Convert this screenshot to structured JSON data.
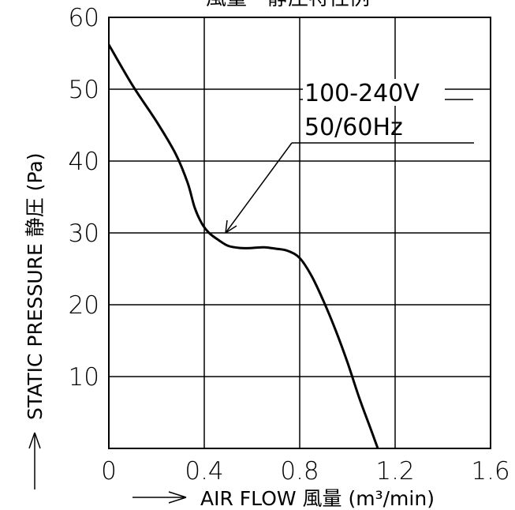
{
  "chart_data": {
    "type": "line",
    "title": "風量－静圧特性例",
    "xlabel": "AIR FLOW 風量 (m³/min)",
    "ylabel": "STATIC PRESSURE 静圧 (Pa)",
    "xlim": [
      0,
      1.6
    ],
    "ylim": [
      0,
      60
    ],
    "x_ticks": [
      "0",
      "0.4",
      "0.8",
      "1.2",
      "1.6"
    ],
    "y_ticks": [
      "10",
      "20",
      "30",
      "40",
      "50",
      "60"
    ],
    "grid": true,
    "series": [
      {
        "name": "",
        "x": [
          0.0,
          0.1,
          0.2,
          0.28,
          0.33,
          0.36,
          0.39,
          0.42,
          0.46,
          0.5,
          0.55,
          0.6,
          0.65,
          0.7,
          0.75,
          0.8,
          0.85,
          0.9,
          0.95,
          1.0,
          1.05,
          1.1,
          1.15,
          1.19
        ],
        "y": [
          56.2,
          50.5,
          45.5,
          41.0,
          37.0,
          33.5,
          31.3,
          30.0,
          29.0,
          28.2,
          27.9,
          27.9,
          28.0,
          27.8,
          27.5,
          26.5,
          24.0,
          20.5,
          16.5,
          12.0,
          7.0,
          2.5,
          -2.0,
          -5.0
        ]
      }
    ],
    "annotation": {
      "lines": [
        "100-240V",
        "50/60Hz"
      ],
      "points_to": [
        0.48,
        29.5
      ]
    }
  }
}
